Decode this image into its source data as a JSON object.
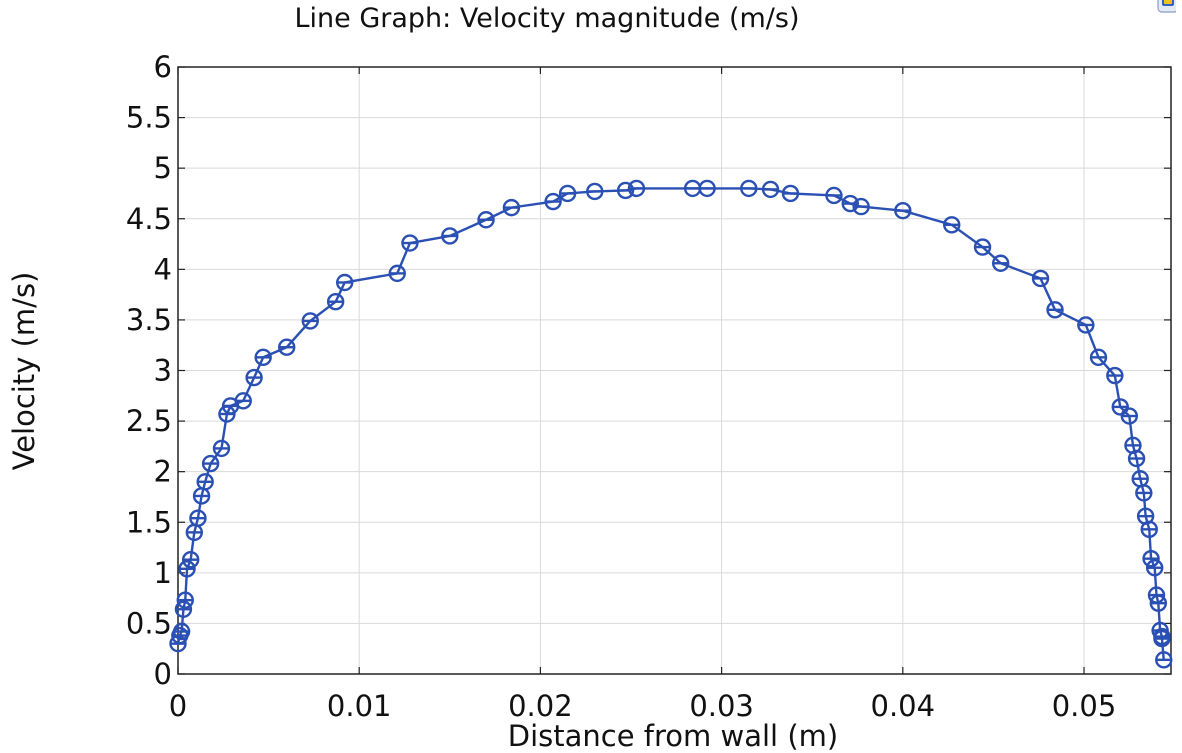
{
  "chart_data": {
    "type": "line",
    "title": "Line Graph: Velocity magnitude (m/s)",
    "xlabel": "Distance from wall (m)",
    "ylabel": "Velocity (m/s)",
    "xlim": [
      0,
      0.0548
    ],
    "ylim": [
      0,
      6
    ],
    "xticks": [
      0,
      0.01,
      0.02,
      0.03,
      0.04,
      0.05
    ],
    "xtick_labels": [
      "0",
      "0.01",
      "0.02",
      "0.03",
      "0.04",
      "0.05"
    ],
    "yticks": [
      0,
      0.5,
      1,
      1.5,
      2,
      2.5,
      3,
      3.5,
      4,
      4.5,
      5,
      5.5,
      6
    ],
    "ytick_labels": [
      "0",
      "0.5",
      "1",
      "1.5",
      "2",
      "2.5",
      "3",
      "3.5",
      "4",
      "4.5",
      "5",
      "5.5",
      "6"
    ],
    "grid": true,
    "series": [
      {
        "name": "Velocity magnitude",
        "color": "#2b50b4",
        "marker": "circle-open",
        "x": [
          0.0,
          0.0001,
          0.0002,
          0.0003,
          0.0004,
          0.0005,
          0.0007,
          0.0009,
          0.0011,
          0.0013,
          0.0015,
          0.0018,
          0.0024,
          0.0027,
          0.0029,
          0.0036,
          0.0042,
          0.0047,
          0.006,
          0.0073,
          0.0087,
          0.0092,
          0.0121,
          0.0128,
          0.015,
          0.017,
          0.0184,
          0.0207,
          0.0215,
          0.023,
          0.0247,
          0.0253,
          0.0284,
          0.0292,
          0.0315,
          0.0327,
          0.0338,
          0.0362,
          0.0371,
          0.0377,
          0.04,
          0.0427,
          0.0444,
          0.0454,
          0.0476,
          0.0484,
          0.0501,
          0.0508,
          0.0517,
          0.052,
          0.0525,
          0.0527,
          0.0529,
          0.0531,
          0.0533,
          0.0534,
          0.0536,
          0.0537,
          0.0539,
          0.054,
          0.0541,
          0.0542,
          0.0543,
          0.0543,
          0.0544
        ],
        "values": [
          0.3,
          0.38,
          0.42,
          0.64,
          0.73,
          1.04,
          1.13,
          1.4,
          1.54,
          1.76,
          1.9,
          2.08,
          2.23,
          2.57,
          2.65,
          2.7,
          2.93,
          3.13,
          3.23,
          3.49,
          3.68,
          3.87,
          3.96,
          4.26,
          4.33,
          4.49,
          4.61,
          4.67,
          4.75,
          4.77,
          4.78,
          4.8,
          4.8,
          4.8,
          4.8,
          4.79,
          4.75,
          4.73,
          4.65,
          4.62,
          4.58,
          4.44,
          4.22,
          4.06,
          3.91,
          3.6,
          3.45,
          3.13,
          2.95,
          2.64,
          2.55,
          2.26,
          2.13,
          1.93,
          1.79,
          1.56,
          1.43,
          1.14,
          1.05,
          0.78,
          0.7,
          0.43,
          0.37,
          0.35,
          0.14
        ]
      }
    ]
  }
}
